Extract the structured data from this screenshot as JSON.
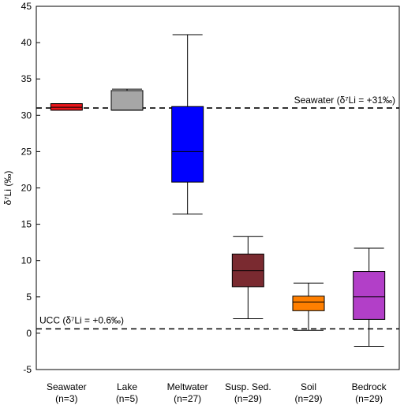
{
  "chart_data": {
    "type": "box",
    "ylabel": "δ⁷Li (‰)",
    "ylim": [
      -5,
      45
    ],
    "yticks": [
      -5,
      0,
      5,
      10,
      15,
      20,
      25,
      30,
      35,
      40,
      45
    ],
    "grid": false,
    "boxes": [
      {
        "label": "Seawater",
        "n_label": "(n=3)",
        "whisker_low": 30.7,
        "q1": 30.7,
        "median": 31.1,
        "q3": 31.6,
        "whisker_high": 31.6,
        "color": "#e8141a"
      },
      {
        "label": "Lake",
        "n_label": "(n=5)",
        "whisker_low": 30.7,
        "q1": 30.7,
        "median": 30.7,
        "q3": 33.4,
        "whisker_high": 33.6,
        "color": "#a6a6a6"
      },
      {
        "label": "Meltwater",
        "n_label": "(n=27)",
        "whisker_low": 16.4,
        "q1": 20.8,
        "median": 25.0,
        "q3": 31.2,
        "whisker_high": 41.1,
        "color": "#0000ff"
      },
      {
        "label": "Susp. Sed.",
        "n_label": "(n=29)",
        "whisker_low": 2.0,
        "q1": 6.4,
        "median": 8.6,
        "q3": 10.9,
        "whisker_high": 13.3,
        "color": "#7a2a30"
      },
      {
        "label": "Soil",
        "n_label": "(n=29)",
        "whisker_low": 0.4,
        "q1": 3.1,
        "median": 4.3,
        "q3": 5.1,
        "whisker_high": 6.9,
        "color": "#ff7f00"
      },
      {
        "label": "Bedrock",
        "n_label": "(n=29)",
        "whisker_low": -1.8,
        "q1": 1.9,
        "median": 5.0,
        "q3": 8.5,
        "whisker_high": 11.7,
        "color": "#b23fc8"
      }
    ],
    "reference_lines": [
      {
        "y": 31.0,
        "label": "Seawater (δ⁷Li = +31‰)"
      },
      {
        "y": 0.6,
        "label": "UCC (δ⁷Li = +0.6‰)"
      }
    ]
  }
}
